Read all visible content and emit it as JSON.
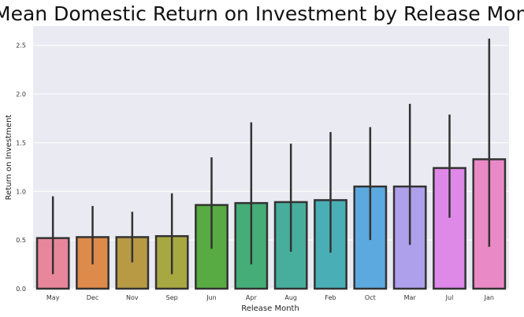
{
  "chart_data": {
    "type": "bar",
    "title": "Mean Domestic Return on Investment by Release Month",
    "xlabel": "Release Month",
    "ylabel": "Return on Investment",
    "categories": [
      "May",
      "Dec",
      "Nov",
      "Sep",
      "Jun",
      "Apr",
      "Aug",
      "Feb",
      "Oct",
      "Mar",
      "Jul",
      "Jan"
    ],
    "values": [
      0.52,
      0.53,
      0.53,
      0.54,
      0.86,
      0.88,
      0.89,
      0.91,
      1.05,
      1.05,
      1.24,
      1.33
    ],
    "error_low": [
      0.15,
      0.25,
      0.27,
      0.15,
      0.41,
      0.25,
      0.38,
      0.37,
      0.5,
      0.45,
      0.73,
      0.43
    ],
    "error_high": [
      0.95,
      0.85,
      0.79,
      0.98,
      1.35,
      1.71,
      1.49,
      1.61,
      1.66,
      1.9,
      1.79,
      2.57
    ],
    "colors": [
      "#e8879b",
      "#dd8a4a",
      "#b89a45",
      "#a8a842",
      "#58ab42",
      "#45ad78",
      "#47ad9d",
      "#49aeb6",
      "#5ca9df",
      "#aea0ea",
      "#de88e8",
      "#e98ac6"
    ],
    "yticks": [
      "0.0",
      "0.5",
      "1.0",
      "1.5",
      "2.0",
      "2.5"
    ],
    "ylim": [
      0,
      2.7
    ],
    "grid": true
  }
}
